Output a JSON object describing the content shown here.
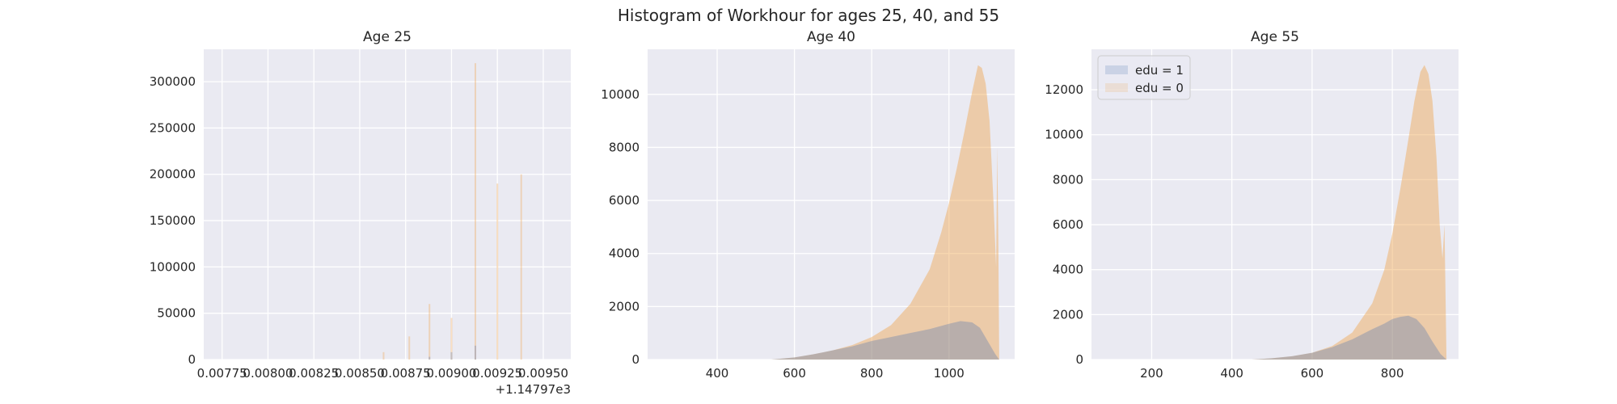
{
  "figure": {
    "suptitle": "Histogram of Workhour for ages 25, 40, and 55",
    "colors": {
      "edu1": "#4c72b0",
      "edu0": "#f0a64f",
      "axes_bg": "#eaeaf2",
      "grid": "#ffffff"
    }
  },
  "chart_data": [
    {
      "type": "bar",
      "title": "Age 25",
      "xlabel": "",
      "ylabel": "",
      "x_tick_labels": [
        "0.00775",
        "0.00800",
        "0.00825",
        "0.00850",
        "0.00875",
        "0.00900",
        "0.00925",
        "0.00950"
      ],
      "x_offset_label": "+1.14797e3",
      "x_ticks": [
        0.00775,
        0.008,
        0.00825,
        0.0085,
        0.00875,
        0.009,
        0.00925,
        0.0095
      ],
      "xlim": [
        0.00765,
        0.00965
      ],
      "y_ticks": [
        0,
        50000,
        100000,
        150000,
        200000,
        250000,
        300000
      ],
      "y_tick_labels": [
        "0",
        "50000",
        "100000",
        "150000",
        "200000",
        "250000",
        "300000"
      ],
      "ylim": [
        0,
        335000
      ],
      "grid": true,
      "series": [
        {
          "name": "edu = 0",
          "x": [
            0.00863,
            0.00877,
            0.00888,
            0.009,
            0.00913,
            0.00925,
            0.00938
          ],
          "values": [
            8000,
            25000,
            60000,
            45000,
            320000,
            190000,
            200000
          ]
        },
        {
          "name": "edu = 1",
          "x": [
            0.00888,
            0.009,
            0.00913
          ],
          "values": [
            3000,
            8000,
            15000
          ]
        }
      ]
    },
    {
      "type": "area",
      "title": "Age 40",
      "xlabel": "",
      "ylabel": "",
      "x_ticks": [
        400,
        600,
        800,
        1000
      ],
      "x_tick_labels": [
        "400",
        "600",
        "800",
        "1000"
      ],
      "xlim": [
        220,
        1170
      ],
      "y_ticks": [
        0,
        2000,
        4000,
        6000,
        8000,
        10000
      ],
      "y_tick_labels": [
        "0",
        "2000",
        "4000",
        "6000",
        "8000",
        "10000"
      ],
      "ylim": [
        0,
        11700
      ],
      "grid": true,
      "series": [
        {
          "name": "edu = 1",
          "x": [
            540,
            600,
            650,
            700,
            750,
            800,
            850,
            900,
            950,
            1000,
            1030,
            1060,
            1080,
            1100,
            1120,
            1130
          ],
          "values": [
            0,
            80,
            200,
            350,
            500,
            700,
            850,
            1000,
            1150,
            1350,
            1450,
            1400,
            1200,
            700,
            200,
            0
          ]
        },
        {
          "name": "edu = 0",
          "x": [
            540,
            600,
            650,
            700,
            750,
            800,
            850,
            900,
            950,
            980,
            1000,
            1020,
            1040,
            1060,
            1075,
            1085,
            1095,
            1105,
            1115,
            1122,
            1125,
            1128,
            1130
          ],
          "values": [
            0,
            80,
            200,
            350,
            550,
            850,
            1300,
            2100,
            3400,
            4800,
            5900,
            7200,
            8600,
            10100,
            11100,
            11000,
            10400,
            9000,
            6000,
            3500,
            8000,
            4000,
            0
          ]
        }
      ]
    },
    {
      "type": "area",
      "title": "Age 55",
      "xlabel": "",
      "ylabel": "",
      "x_ticks": [
        200,
        400,
        600,
        800
      ],
      "x_tick_labels": [
        "200",
        "400",
        "600",
        "800"
      ],
      "xlim": [
        50,
        965
      ],
      "y_ticks": [
        0,
        2000,
        4000,
        6000,
        8000,
        10000,
        12000
      ],
      "y_tick_labels": [
        "0",
        "2000",
        "4000",
        "6000",
        "8000",
        "10000",
        "12000"
      ],
      "ylim": [
        0,
        13800
      ],
      "grid": true,
      "legend": "top-left",
      "series": [
        {
          "name": "edu = 1",
          "x": [
            450,
            500,
            550,
            600,
            650,
            700,
            750,
            780,
            800,
            820,
            840,
            860,
            880,
            900,
            920,
            935
          ],
          "values": [
            0,
            60,
            150,
            300,
            550,
            900,
            1350,
            1600,
            1800,
            1900,
            1950,
            1800,
            1400,
            800,
            250,
            0
          ]
        },
        {
          "name": "edu = 0",
          "x": [
            450,
            500,
            550,
            600,
            650,
            700,
            750,
            780,
            800,
            820,
            840,
            855,
            870,
            880,
            890,
            900,
            910,
            918,
            925,
            930,
            935
          ],
          "values": [
            0,
            60,
            150,
            300,
            600,
            1200,
            2500,
            4000,
            5600,
            7600,
            9800,
            11500,
            12800,
            13100,
            12700,
            11500,
            9000,
            6000,
            4500,
            6000,
            0
          ]
        }
      ]
    }
  ]
}
